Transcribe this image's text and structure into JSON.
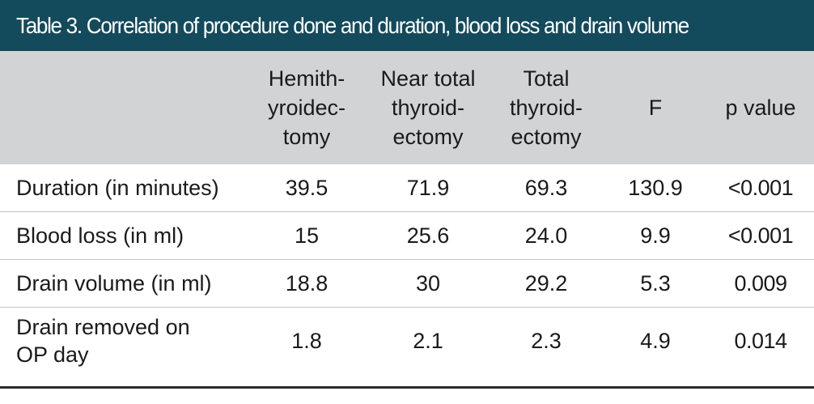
{
  "table": {
    "title": "Table 3. Correlation of procedure done and duration, blood loss and drain volume",
    "header_bg": "#134a5c",
    "head_band_color": "#d2d3d5",
    "columns": [
      {
        "lines": []
      },
      {
        "lines": [
          "Hemith-",
          "yroidec-",
          "tomy"
        ]
      },
      {
        "lines": [
          "Near total",
          "thyroid-",
          "ectomy"
        ]
      },
      {
        "lines": [
          "Total",
          "thyroid-",
          "ectomy"
        ]
      },
      {
        "lines": [
          "F"
        ]
      },
      {
        "lines": [
          "p value"
        ]
      }
    ],
    "rows": [
      {
        "label": "Duration (in minutes)",
        "values": [
          "39.5",
          "71.9",
          "69.3",
          "130.9",
          "<0.001"
        ]
      },
      {
        "label": "Blood loss (in ml)",
        "values": [
          "15",
          "25.6",
          "24.0",
          "9.9",
          "<0.001"
        ]
      },
      {
        "label": "Drain volume (in ml)",
        "values": [
          "18.8",
          "30",
          "29.2",
          "5.3",
          "0.009"
        ]
      },
      {
        "label": "Drain removed on OP day",
        "values": [
          "1.8",
          "2.1",
          "2.3",
          "4.9",
          "0.014"
        ]
      }
    ]
  }
}
